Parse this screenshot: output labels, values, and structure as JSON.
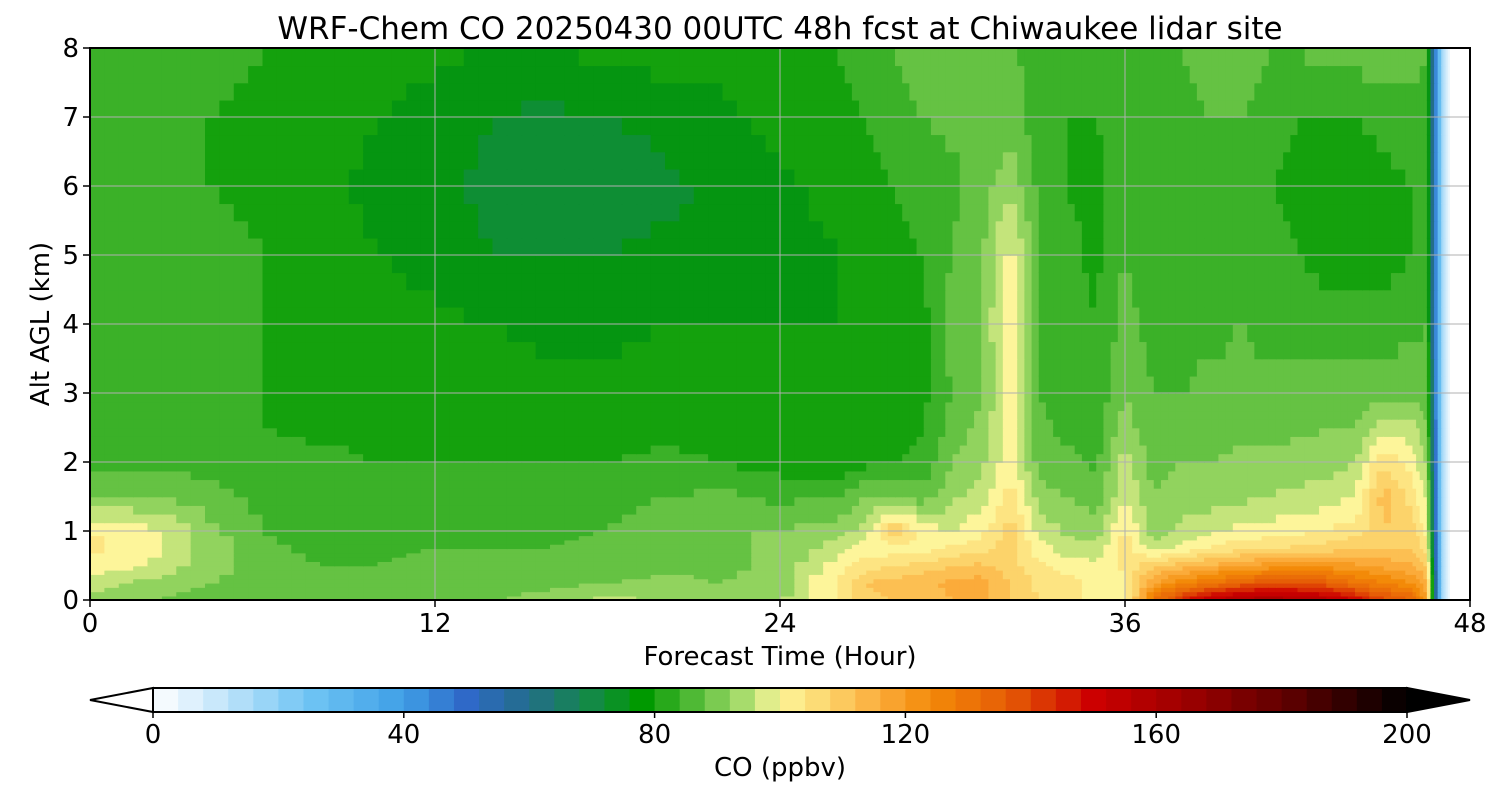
{
  "chart_data": {
    "type": "heatmap",
    "title": "WRF-Chem CO  20250430 00UTC 48h fcst at Chiwaukee lidar site",
    "xlabel": "Forecast Time (Hour)",
    "ylabel": "Alt AGL (km)",
    "xlim": [
      0,
      48
    ],
    "ylim": [
      0,
      8
    ],
    "xticks": [
      0,
      12,
      24,
      36,
      48
    ],
    "yticks": [
      0,
      1,
      2,
      3,
      4,
      5,
      6,
      7,
      8
    ],
    "grid": true,
    "x_hours": [
      0,
      2,
      4,
      6,
      8,
      10,
      12,
      14,
      16,
      18,
      20,
      22,
      24,
      26,
      27,
      28,
      29,
      30,
      31,
      32,
      33,
      34,
      35,
      36,
      37,
      38,
      39,
      40,
      41,
      42,
      43,
      44,
      45,
      46,
      46.5,
      47,
      47.3,
      48
    ],
    "y_km": [
      0,
      0.25,
      0.5,
      0.75,
      1,
      1.5,
      2,
      2.5,
      3,
      4,
      5,
      6,
      7,
      8
    ],
    "co_ppbv": [
      [
        92,
        90,
        88,
        90,
        89,
        90,
        88,
        90,
        92,
        95,
        94,
        92,
        93,
        103,
        108,
        110,
        112,
        114,
        115,
        110,
        106,
        105,
        100,
        100,
        130,
        145,
        155,
        160,
        162,
        160,
        157,
        150,
        140,
        135,
        118,
        20,
        0,
        0
      ],
      [
        96,
        93,
        90,
        89,
        87,
        88,
        88,
        88,
        89,
        90,
        91,
        90,
        92,
        103,
        110,
        112,
        113,
        115,
        116,
        110,
        105,
        104,
        100,
        101,
        118,
        125,
        130,
        135,
        138,
        138,
        136,
        130,
        126,
        122,
        115,
        20,
        0,
        0
      ],
      [
        100,
        98,
        92,
        88,
        86,
        86,
        87,
        87,
        87,
        88,
        89,
        89,
        91,
        100,
        104,
        106,
        108,
        110,
        111,
        108,
        103,
        100,
        99,
        103,
        110,
        112,
        115,
        118,
        120,
        121,
        121,
        119,
        117,
        115,
        110,
        20,
        0,
        0
      ],
      [
        103,
        100,
        93,
        87,
        85,
        85,
        86,
        86,
        86,
        87,
        88,
        89,
        91,
        96,
        100,
        100,
        100,
        103,
        104,
        108,
        100,
        96,
        96,
        104,
        96,
        100,
        103,
        105,
        106,
        107,
        108,
        110,
        110,
        110,
        104,
        20,
        0,
        0
      ],
      [
        102,
        100,
        92,
        86,
        84,
        84,
        85,
        85,
        85,
        86,
        88,
        90,
        90,
        92,
        96,
        110,
        100,
        98,
        101,
        108,
        97,
        93,
        92,
        103,
        92,
        95,
        97,
        99,
        100,
        101,
        102,
        104,
        110,
        108,
        100,
        20,
        0,
        0
      ],
      [
        90,
        90,
        88,
        85,
        84,
        83,
        84,
        84,
        84,
        85,
        86,
        87,
        85,
        86,
        90,
        91,
        88,
        93,
        96,
        104,
        92,
        90,
        88,
        98,
        90,
        92,
        92,
        93,
        94,
        95,
        96,
        98,
        112,
        104,
        97,
        20,
        0,
        0
      ],
      [
        84,
        85,
        84,
        84,
        83,
        82,
        82,
        82,
        82,
        82,
        83,
        82,
        80,
        79,
        81,
        82,
        83,
        90,
        93,
        101,
        88,
        87,
        85,
        96,
        88,
        90,
        90,
        91,
        91,
        92,
        92,
        94,
        106,
        100,
        93,
        20,
        0,
        0
      ],
      [
        83,
        83,
        82,
        82,
        81,
        81,
        81,
        81,
        80,
        80,
        81,
        80,
        79,
        78,
        80,
        80,
        82,
        88,
        91,
        100,
        87,
        85,
        84,
        92,
        87,
        88,
        88,
        89,
        89,
        89,
        90,
        90,
        96,
        96,
        90,
        20,
        0,
        0
      ],
      [
        84,
        84,
        83,
        82,
        82,
        81,
        80,
        80,
        79,
        79,
        80,
        79,
        78,
        78,
        79,
        79,
        81,
        86,
        90,
        100,
        86,
        84,
        83,
        90,
        86,
        86,
        87,
        87,
        87,
        87,
        88,
        88,
        88,
        89,
        88,
        20,
        0,
        0
      ],
      [
        86,
        85,
        84,
        82,
        81,
        80,
        79,
        78,
        77,
        77,
        78,
        78,
        78,
        78,
        79,
        80,
        81,
        88,
        90,
        101,
        86,
        84,
        82,
        88,
        84,
        85,
        85,
        86,
        85,
        85,
        84,
        84,
        84,
        85,
        86,
        20,
        0,
        0
      ],
      [
        86,
        85,
        83,
        82,
        80,
        78,
        76,
        74,
        74,
        74,
        75,
        76,
        77,
        78,
        80,
        81,
        82,
        86,
        89,
        100,
        86,
        83,
        81,
        86,
        83,
        84,
        84,
        84,
        83,
        82,
        80,
        79,
        80,
        82,
        84,
        20,
        0,
        0
      ],
      [
        84,
        83,
        82,
        81,
        79,
        77,
        75,
        73,
        72,
        72,
        73,
        75,
        77,
        79,
        81,
        82,
        83,
        85,
        88,
        93,
        85,
        82,
        81,
        84,
        82,
        83,
        84,
        84,
        82,
        81,
        80,
        80,
        81,
        82,
        84,
        20,
        0,
        0
      ],
      [
        84,
        83,
        82,
        81,
        80,
        78,
        76,
        74,
        73,
        74,
        75,
        77,
        79,
        81,
        82,
        84,
        86,
        87,
        86,
        88,
        84,
        82,
        82,
        83,
        83,
        84,
        86,
        86,
        84,
        82,
        82,
        82,
        83,
        84,
        85,
        20,
        0,
        0
      ],
      [
        86,
        85,
        84,
        82,
        81,
        80,
        79,
        78,
        78,
        79,
        80,
        80,
        81,
        82,
        84,
        86,
        88,
        90,
        86,
        87,
        84,
        83,
        83,
        84,
        85,
        86,
        88,
        88,
        86,
        86,
        88,
        88,
        90,
        88,
        86,
        20,
        0,
        0
      ]
    ],
    "colorbar": {
      "label": "CO  (ppbv)",
      "vmin": 0,
      "vmax": 200,
      "ticks": [
        0,
        40,
        80,
        120,
        160,
        200
      ],
      "extend": "both",
      "placement": "bottom",
      "color_stops": [
        {
          "v": 0,
          "c": "#ffffff"
        },
        {
          "v": 10,
          "c": "#c9e8fb"
        },
        {
          "v": 25,
          "c": "#6fc4f4"
        },
        {
          "v": 40,
          "c": "#3f9fe6"
        },
        {
          "v": 50,
          "c": "#2f69c8"
        },
        {
          "v": 60,
          "c": "#236d8a"
        },
        {
          "v": 70,
          "c": "#138a45"
        },
        {
          "v": 78,
          "c": "#009900"
        },
        {
          "v": 86,
          "c": "#4fb935"
        },
        {
          "v": 94,
          "c": "#a7dc6c"
        },
        {
          "v": 100,
          "c": "#fdf59a"
        },
        {
          "v": 108,
          "c": "#fcd36a"
        },
        {
          "v": 116,
          "c": "#fbab3a"
        },
        {
          "v": 124,
          "c": "#f38a08"
        },
        {
          "v": 136,
          "c": "#e65e06"
        },
        {
          "v": 150,
          "c": "#cc0000"
        },
        {
          "v": 166,
          "c": "#980000"
        },
        {
          "v": 182,
          "c": "#5a0000"
        },
        {
          "v": 200,
          "c": "#000000"
        }
      ]
    }
  }
}
